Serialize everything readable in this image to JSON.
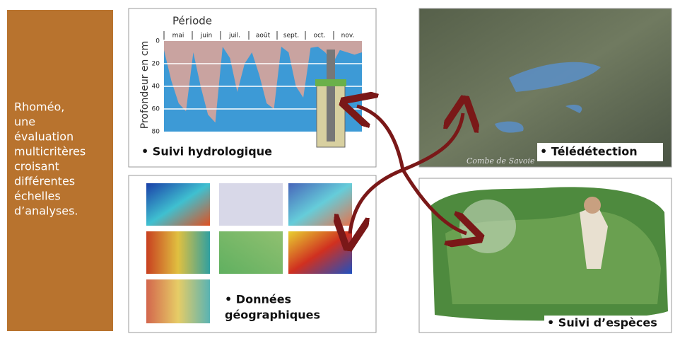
{
  "sidebar": {
    "lines": [
      "Rhoméo,",
      "une",
      "évaluation",
      "multicritères",
      "croisant",
      "différentes",
      "échelles",
      "d’analyses."
    ]
  },
  "hydro": {
    "label": "• Suivi hydrologique",
    "chart": {
      "type": "area",
      "title": "Période",
      "ylabel": "Profondeur en cm",
      "categories": [
        "mai",
        "juin",
        "juil.",
        "août",
        "sept.",
        "oct.",
        "nov."
      ],
      "values": [
        8,
        35,
        55,
        62,
        10,
        40,
        65,
        72,
        5,
        15,
        45,
        20,
        10,
        30,
        55,
        60,
        5,
        10,
        40,
        50,
        6,
        5,
        10,
        20,
        8,
        10,
        12,
        10
      ],
      "ylim": [
        0,
        80
      ],
      "yticks": [
        0,
        20,
        40,
        60,
        80
      ],
      "grid": true,
      "color": "#3d9ad6",
      "top_color": "#c9a3a0"
    }
  },
  "geo": {
    "label_lines": [
      "• Données",
      "géographiques"
    ]
  },
  "teledetection": {
    "label": "• Télédétection",
    "watermark": "Combe de Savoie"
  },
  "species": {
    "label": "• Suivi d’espèces"
  }
}
